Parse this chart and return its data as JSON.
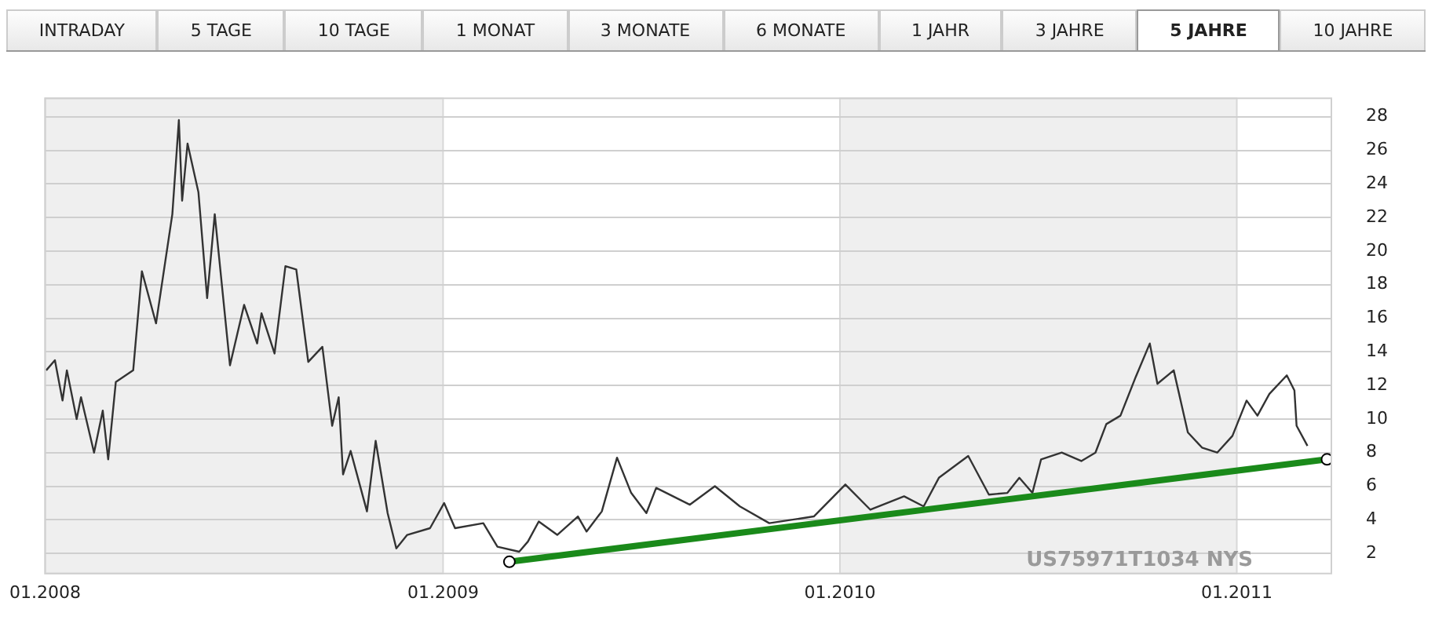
{
  "chart_data": {
    "type": "line",
    "xlim": [
      "2008-01-01",
      "2011-03-29"
    ],
    "xticks": [
      {
        "value": "2008-01-01",
        "label": "01.2008"
      },
      {
        "value": "2009-01-01",
        "label": "01.2009"
      },
      {
        "value": "2010-01-01",
        "label": "01.2010"
      },
      {
        "value": "2011-01-01",
        "label": "01.2011"
      }
    ],
    "ylim": [
      0.8,
      29.1
    ],
    "yticks": [
      2,
      4,
      6,
      8,
      10,
      12,
      14,
      16,
      18,
      20,
      22,
      24,
      26,
      28
    ],
    "grid": "y",
    "legend": false,
    "bands": [
      {
        "axis": "x",
        "from": "2008-01-01",
        "to": "2009-01-01",
        "color": "#efefef"
      },
      {
        "axis": "x",
        "from": "2010-01-01",
        "to": "2011-01-01",
        "color": "#efefef"
      }
    ],
    "series": [
      {
        "color": "#333333",
        "x": [
          "2008-01-02",
          "2008-01-10",
          "2008-01-17",
          "2008-01-21",
          "2008-01-30",
          "2008-02-03",
          "2008-02-15",
          "2008-02-23",
          "2008-02-28",
          "2008-03-06",
          "2008-03-22",
          "2008-03-30",
          "2008-04-12",
          "2008-04-27",
          "2008-05-03",
          "2008-05-06",
          "2008-05-11",
          "2008-05-21",
          "2008-05-29",
          "2008-06-05",
          "2008-06-19",
          "2008-07-02",
          "2008-07-14",
          "2008-07-18",
          "2008-07-30",
          "2008-08-09",
          "2008-08-19",
          "2008-08-30",
          "2008-09-12",
          "2008-09-21",
          "2008-09-27",
          "2008-10-01",
          "2008-10-08",
          "2008-10-23",
          "2008-10-31",
          "2008-11-11",
          "2008-11-19",
          "2008-11-29",
          "2008-12-20",
          "2009-01-02",
          "2009-01-12",
          "2009-02-07",
          "2009-02-20",
          "2009-03-12",
          "2009-03-20",
          "2009-03-30",
          "2009-04-16",
          "2009-05-05",
          "2009-05-13",
          "2009-05-27",
          "2009-06-10",
          "2009-06-23",
          "2009-07-07",
          "2009-07-16",
          "2009-08-16",
          "2009-09-08",
          "2009-10-01",
          "2009-10-28",
          "2009-12-08",
          "2010-01-06",
          "2010-01-29",
          "2010-03-01",
          "2010-03-19",
          "2010-04-02",
          "2010-04-29",
          "2010-05-18",
          "2010-06-04",
          "2010-06-15",
          "2010-06-27",
          "2010-07-05",
          "2010-07-24",
          "2010-08-11",
          "2010-08-24",
          "2010-09-03",
          "2010-09-16",
          "2010-09-30",
          "2010-10-13",
          "2010-10-20",
          "2010-11-04",
          "2010-11-17",
          "2010-11-30",
          "2010-12-14",
          "2010-12-28",
          "2011-01-10",
          "2011-01-20",
          "2011-01-31",
          "2011-02-16",
          "2011-02-23",
          "2011-02-25",
          "2011-03-07"
        ],
        "values": [
          12.9,
          13.5,
          11.1,
          12.9,
          10.0,
          11.3,
          8.0,
          10.5,
          7.6,
          12.2,
          12.9,
          18.8,
          15.7,
          22.2,
          27.8,
          23.0,
          26.4,
          23.5,
          17.2,
          22.2,
          13.2,
          16.8,
          14.5,
          16.3,
          13.9,
          19.1,
          18.9,
          13.4,
          14.3,
          9.6,
          11.3,
          6.7,
          8.1,
          4.5,
          8.7,
          4.4,
          2.3,
          3.1,
          3.5,
          5.0,
          3.5,
          3.8,
          2.4,
          2.1,
          2.7,
          3.9,
          3.1,
          4.2,
          3.3,
          4.5,
          7.7,
          5.6,
          4.4,
          5.9,
          4.9,
          6.0,
          4.8,
          3.8,
          4.2,
          6.1,
          4.6,
          5.4,
          4.8,
          6.5,
          7.8,
          5.5,
          5.6,
          6.5,
          5.6,
          7.6,
          8.0,
          7.5,
          8.0,
          9.7,
          10.2,
          12.5,
          14.5,
          12.1,
          12.9,
          9.2,
          8.3,
          8.0,
          9.0,
          11.1,
          10.2,
          11.5,
          12.6,
          11.7,
          9.6,
          8.4
        ]
      },
      {
        "color": "#1a8a1a",
        "marker": "circle",
        "x": [
          "2009-03-03",
          "2011-03-25"
        ],
        "values": [
          1.5,
          7.6
        ]
      }
    ],
    "annotations": [
      "INTRADAY",
      "5 TAGE",
      "10 TAGE",
      "1 MONAT",
      "3 MONATE",
      "6 MONATE",
      "1 JAHR",
      "3 JAHRE",
      "5 JAHRE",
      "10 JAHRE",
      "US75971T1034 NYS"
    ]
  }
}
